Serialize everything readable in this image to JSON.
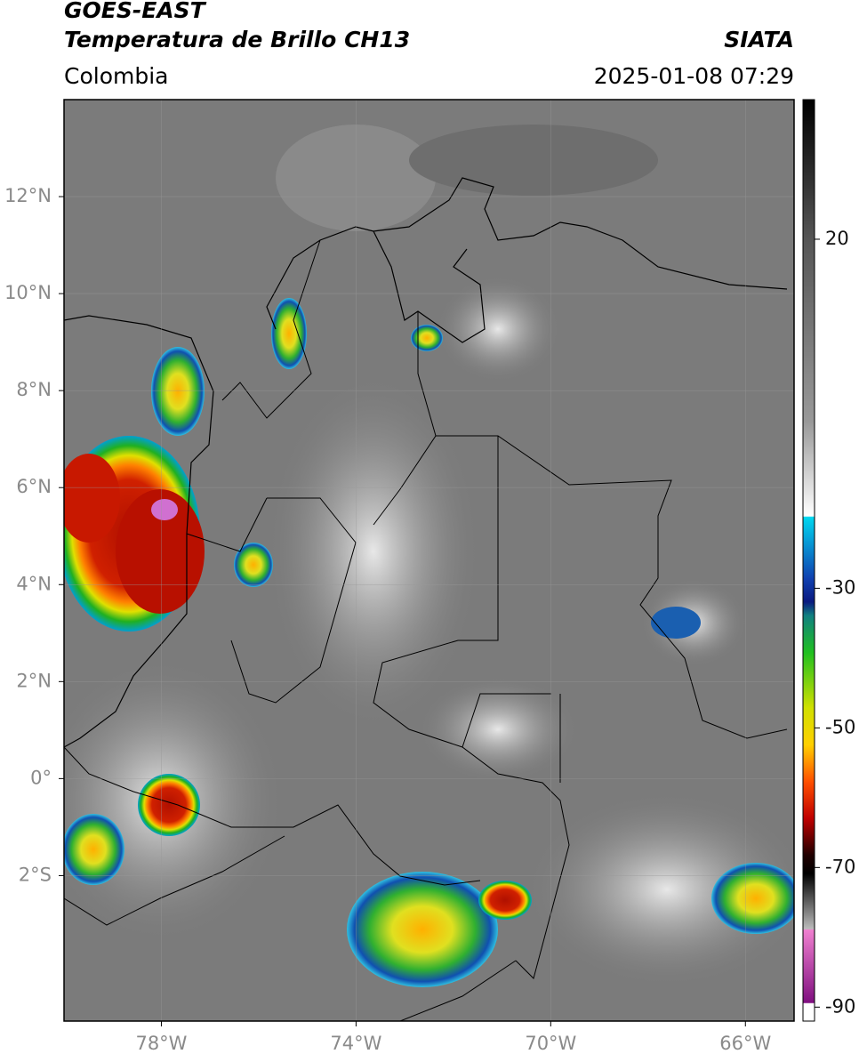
{
  "header": {
    "title": "GOES-EAST",
    "subtitle": "Temperatura de Brillo CH13",
    "source": "SIATA",
    "region": "Colombia",
    "timestamp": "2025-01-08 07:29"
  },
  "map": {
    "xlim": [
      -80,
      -65
    ],
    "ylim": [
      -5,
      14
    ],
    "xticks": [
      {
        "value": -78,
        "label": "78°W"
      },
      {
        "value": -74,
        "label": "74°W"
      },
      {
        "value": -70,
        "label": "70°W"
      },
      {
        "value": -66,
        "label": "66°W"
      }
    ],
    "yticks": [
      {
        "value": 12,
        "label": "12°N"
      },
      {
        "value": 10,
        "label": "10°N"
      },
      {
        "value": 8,
        "label": "8°N"
      },
      {
        "value": 6,
        "label": "6°N"
      },
      {
        "value": 4,
        "label": "4°N"
      },
      {
        "value": 2,
        "label": "2°N"
      },
      {
        "value": 0,
        "label": "0°"
      },
      {
        "value": -2,
        "label": "2°S"
      }
    ]
  },
  "colorbar": {
    "lim": [
      -92,
      40
    ],
    "ticks": [
      20,
      -30,
      -50,
      -70,
      -90
    ]
  }
}
